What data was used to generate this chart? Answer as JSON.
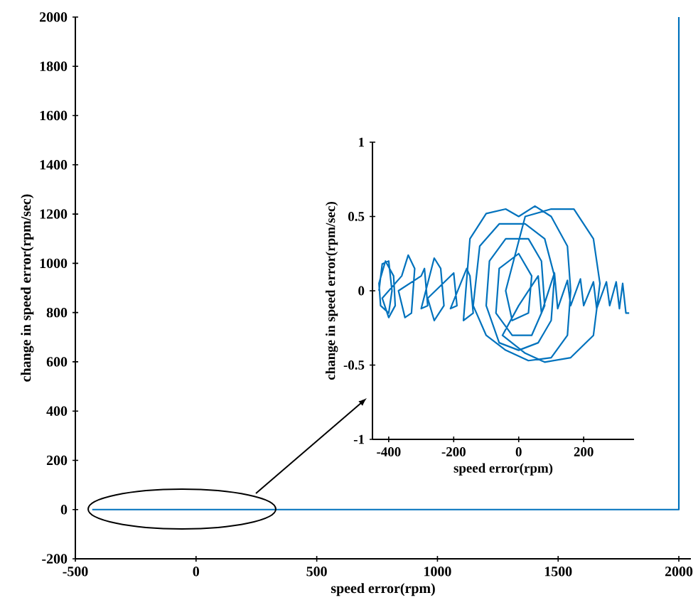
{
  "chart_data": [
    {
      "type": "line",
      "xlabel": "speed error(rpm)",
      "ylabel": "change in speed error(rpm/sec)",
      "xlim": [
        -500,
        2050
      ],
      "ylim": [
        -200,
        2000
      ],
      "xticks": [
        -500,
        0,
        500,
        1000,
        1500,
        2000
      ],
      "yticks": [
        -200,
        0,
        200,
        400,
        600,
        800,
        1000,
        1200,
        1400,
        1600,
        1800,
        2000
      ],
      "series": [
        {
          "color": "#0072bd",
          "x": [
            -430,
            2000,
            2000
          ],
          "values": [
            0,
            0,
            2000
          ]
        }
      ]
    },
    {
      "type": "line",
      "xlabel": "speed error(rpm)",
      "ylabel": "change in speed error(rpm/sec)",
      "xlim": [
        -450,
        355
      ],
      "ylim": [
        -1,
        1
      ],
      "xticks": [
        -400,
        -200,
        0,
        200
      ],
      "yticks": [
        -1,
        -0.5,
        0,
        0.5,
        1
      ],
      "series": [
        {
          "color": "#0072bd",
          "x": [
            -430,
            -420,
            -400,
            -390,
            -400,
            -425,
            -430,
            -410,
            -385,
            -380,
            -400,
            -420,
            -360,
            -340,
            -320,
            -330,
            -350,
            -370,
            -300,
            -290,
            -280,
            -300,
            -260,
            -240,
            -230,
            -260,
            -280,
            -200,
            -190,
            -210,
            -160,
            -150,
            -140,
            -170,
            -150,
            -100,
            -40,
            0,
            50,
            100,
            150,
            160,
            150,
            100,
            30,
            -40,
            -100,
            -140,
            -120,
            -60,
            20,
            80,
            110,
            100,
            60,
            0,
            -60,
            -100,
            -90,
            -40,
            30,
            70,
            80,
            40,
            -20,
            -70,
            -60,
            0,
            40,
            30,
            -20,
            -40,
            20,
            100,
            170,
            230,
            250,
            230,
            160,
            80,
            20,
            -50,
            0,
            60,
            70,
            110,
            120,
            150,
            160,
            190,
            200,
            230,
            240,
            270,
            280,
            300,
            310,
            320,
            330,
            340
          ],
          "values": [
            0,
            0.18,
            0.2,
            0,
            -0.15,
            -0.1,
            0.05,
            0.2,
            0.1,
            -0.1,
            -0.18,
            -0.05,
            0.1,
            0.24,
            0.15,
            -0.15,
            -0.18,
            0,
            0.1,
            0.15,
            -0.1,
            -0.12,
            0.22,
            0.15,
            -0.1,
            -0.2,
            -0.05,
            0.12,
            -0.1,
            -0.12,
            0.15,
            0.1,
            -0.15,
            -0.2,
            0.35,
            0.52,
            0.55,
            0.5,
            0.57,
            0.5,
            0.3,
            0,
            -0.3,
            -0.45,
            -0.47,
            -0.4,
            -0.3,
            -0.1,
            0.3,
            0.45,
            0.45,
            0.35,
            0.1,
            -0.2,
            -0.35,
            -0.4,
            -0.35,
            -0.1,
            0.2,
            0.35,
            0.35,
            0.2,
            -0.1,
            -0.3,
            -0.3,
            -0.15,
            0.15,
            0.25,
            0.1,
            -0.15,
            -0.2,
            0,
            0.5,
            0.55,
            0.55,
            0.35,
            0.05,
            -0.3,
            -0.45,
            -0.48,
            -0.42,
            -0.3,
            -0.1,
            0.1,
            -0.15,
            0.12,
            -0.12,
            0.07,
            -0.1,
            0.08,
            -0.1,
            0.06,
            -0.12,
            0.06,
            -0.1,
            0.06,
            -0.12,
            0.05,
            -0.15,
            -0.15
          ]
        }
      ]
    }
  ]
}
